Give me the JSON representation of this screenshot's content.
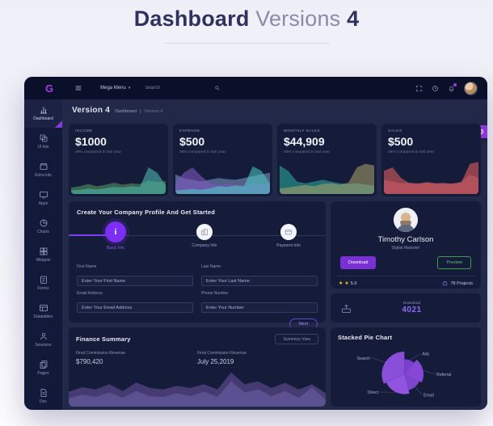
{
  "page": {
    "title_bold": "Dashboard",
    "title_light": "Versions",
    "title_number": "4"
  },
  "icons": {
    "gear": "⚙",
    "caret_down": "▾",
    "star": "★",
    "info": "i"
  },
  "navbar": {
    "logo": "G",
    "mega_menu_label": "Mega Menu",
    "search_placeholder": "Search"
  },
  "sidebar": {
    "items": [
      {
        "label": "Dashboard",
        "icon": "dashboard-icon",
        "active": true
      },
      {
        "label": "UI kits",
        "icon": "ui-kits-icon"
      },
      {
        "label": "Extra kits",
        "icon": "extra-kits-icon"
      },
      {
        "label": "Apps",
        "icon": "apps-icon"
      },
      {
        "label": "Charts",
        "icon": "charts-icon"
      },
      {
        "label": "Widgets",
        "icon": "widgets-icon"
      },
      {
        "label": "Forms",
        "icon": "forms-icon"
      },
      {
        "label": "Datatables",
        "icon": "datatables-icon"
      },
      {
        "label": "Sessions",
        "icon": "sessions-icon"
      },
      {
        "label": "Pages",
        "icon": "pages-icon"
      },
      {
        "label": "Doc",
        "icon": "doc-icon"
      }
    ]
  },
  "content_header": {
    "title": "Version 4",
    "breadcrumb_main": "Dashboard",
    "separator": "|",
    "breadcrumb_current": "Version 4"
  },
  "stats": {
    "cards": [
      {
        "label": "Income",
        "value": "$1000",
        "subtext": "48% compared to last year"
      },
      {
        "label": "Expense",
        "value": "$500",
        "subtext": "48% compared to last year"
      },
      {
        "label": "Monthly Sales",
        "value": "$44,909",
        "subtext": "48% compared to last year"
      },
      {
        "label": "Sales",
        "value": "$500",
        "subtext": "48% compared to last year"
      }
    ]
  },
  "profile_setup": {
    "title": "Create Your Company Profile And Get Started",
    "steps": [
      {
        "label": "Basic Info",
        "icon": "info-icon",
        "active": true
      },
      {
        "label": "Company Info",
        "icon": "company-icon",
        "active": false
      },
      {
        "label": "Payment Info",
        "icon": "payment-icon",
        "active": false
      }
    ],
    "fields": [
      {
        "label": "First Name",
        "placeholder": "Enter Your First Name"
      },
      {
        "label": "Last Name",
        "placeholder": "Enter Your Last Name"
      },
      {
        "label": "Email Address",
        "placeholder": "Enter Your Email Address"
      },
      {
        "label": "Phone Number",
        "placeholder": "Enter Your Number"
      }
    ],
    "next_label": "Next"
  },
  "profile_card": {
    "name": "Timothy Carlson",
    "role": "Digital Marketer",
    "download_label": "Download",
    "preview_label": "Preview",
    "rating": "5.0",
    "projects": "78 Projects"
  },
  "download_card": {
    "label": "Download",
    "value": "4021"
  },
  "finance": {
    "title": "Finance Summary",
    "view_button": "Summary View",
    "metrics": [
      {
        "label": "Final Commission Revenue",
        "value": "$790,420"
      },
      {
        "label": "Final Commission Revenue",
        "value": "July 25,2019"
      }
    ]
  },
  "pie_card": {
    "title": "Stacked Pie Chart"
  },
  "colors": {
    "accent_purple": "#7c3ff2",
    "gear_purple": "#8b36d9",
    "download_purple": "#7b2fd6",
    "preview_green": "#3f9d4e",
    "star_yellow": "#f5c518",
    "card_bg": "#151c3a",
    "content_bg": "#222948",
    "navbar_bg": "#0b102a",
    "sidebar_bg": "#131938"
  },
  "chart_data": {
    "sparklines": {
      "stat0": {
        "type": "area",
        "series": [
          {
            "name": "green",
            "color": "#66bb6a",
            "opacity": 0.45,
            "values": [
              18,
              22,
              28,
              22,
              26,
              32,
              26,
              30,
              28,
              38,
              34,
              36
            ]
          },
          {
            "name": "teal",
            "color": "#4db6ac",
            "opacity": 0.6,
            "values": [
              10,
              12,
              15,
              13,
              16,
              20,
              18,
              22,
              20,
              75,
              60,
              25
            ]
          }
        ]
      },
      "stat1": {
        "type": "area",
        "series": [
          {
            "name": "slate",
            "color": "#8fa6d9",
            "opacity": 0.5,
            "values": [
              55,
              45,
              40,
              35,
              40,
              45,
              42,
              40,
              45,
              50,
              55,
              60
            ]
          },
          {
            "name": "purple",
            "color": "#7e57c2",
            "opacity": 0.6,
            "values": [
              30,
              60,
              75,
              50,
              30,
              25,
              28,
              26,
              24,
              30,
              28,
              26
            ]
          },
          {
            "name": "teal",
            "color": "#4dd0c4",
            "opacity": 0.55,
            "values": [
              10,
              12,
              14,
              12,
              16,
              22,
              20,
              24,
              22,
              78,
              65,
              30
            ]
          }
        ]
      },
      "stat2": {
        "type": "area",
        "series": [
          {
            "name": "teal",
            "color": "#26a69a",
            "opacity": 0.6,
            "values": [
              80,
              65,
              35,
              30,
              35,
              40,
              35,
              30,
              28,
              30,
              26,
              24
            ]
          },
          {
            "name": "olive",
            "color": "#b0a46a",
            "opacity": 0.55,
            "values": [
              15,
              18,
              22,
              25,
              22,
              28,
              30,
              26,
              32,
              75,
              85,
              80
            ]
          }
        ]
      },
      "stat3": {
        "type": "area",
        "series": [
          {
            "name": "rose",
            "color": "#c96a7a",
            "opacity": 0.5,
            "values": [
              40,
              35,
              30,
              32,
              30,
              34,
              30,
              32,
              28,
              35,
              55,
              45
            ]
          },
          {
            "name": "red",
            "color": "#e05b5b",
            "opacity": 0.6,
            "values": [
              65,
              75,
              45,
              30,
              28,
              32,
              30,
              28,
              30,
              32,
              85,
              90
            ]
          }
        ]
      },
      "finance": {
        "type": "area",
        "series": [
          {
            "name": "back",
            "color": "#453b72",
            "opacity": 1,
            "values": [
              40,
              52,
              46,
              60,
              42,
              65,
              50,
              46,
              56,
              50,
              60,
              46,
              92,
              60,
              68,
              50,
              64,
              46,
              60,
              36
            ]
          },
          {
            "name": "front",
            "color": "#5c5190",
            "opacity": 1,
            "values": [
              22,
              32,
              26,
              38,
              24,
              42,
              28,
              26,
              36,
              28,
              40,
              26,
              68,
              38,
              46,
              28,
              42,
              24,
              52,
              18
            ]
          }
        ]
      }
    },
    "pie": {
      "type": "pie",
      "title": "Stacked Pie Chart",
      "start_angle": 0,
      "slices": [
        {
          "label": "Ads",
          "angle": 40,
          "radius": 22,
          "color": "#7a3fd0"
        },
        {
          "label": "Referral",
          "angle": 75,
          "radius": 28,
          "color": "#8747d6"
        },
        {
          "label": "Email",
          "angle": 50,
          "radius": 24,
          "color": "#7d44cc"
        },
        {
          "label": "Direct",
          "angle": 80,
          "radius": 29,
          "color": "#9154e0"
        },
        {
          "label": "Search",
          "angle": 115,
          "radius": 33,
          "color": "#8a4fd8"
        }
      ]
    }
  }
}
